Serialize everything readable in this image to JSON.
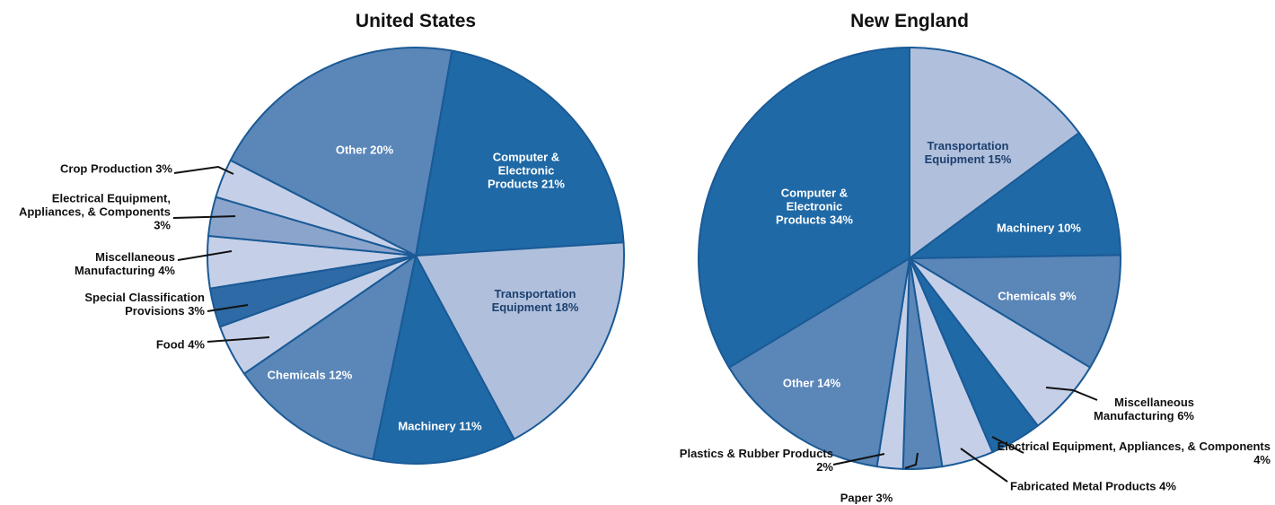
{
  "chart_data": [
    {
      "type": "pie",
      "title": "United States",
      "categories": [
        "Computer & Electronic Products",
        "Transportation Equipment",
        "Machinery",
        "Chemicals",
        "Food",
        "Special Classification Provisions",
        "Miscellaneous Manufacturing",
        "Electrical Equipment, Appliances, & Components",
        "Crop Production",
        "Other"
      ],
      "values": [
        21,
        18,
        11,
        12,
        4,
        3,
        4,
        3,
        3,
        20
      ],
      "value_labels": [
        "21%",
        "18%",
        "11%",
        "12%",
        "4%",
        "3%",
        "4%",
        "3%",
        "3%",
        "20%"
      ],
      "colors": [
        "#1f69a6",
        "#b0c0dc",
        "#1f69a6",
        "#5a86b8",
        "#c5d0e8",
        "#2e6aa5",
        "#c5d0e8",
        "#8ba4cc",
        "#c5d0e8",
        "#5a86b8"
      ]
    },
    {
      "type": "pie",
      "title": "New England",
      "categories": [
        "Transportation Equipment",
        "Machinery",
        "Chemicals",
        "Miscellaneous Manufacturing",
        "Electrical Equipment, Appliances, & Components",
        "Fabricated Metal Products",
        "Paper",
        "Plastics & Rubber Products",
        "Other",
        "Computer & Electronic Products"
      ],
      "values": [
        15,
        10,
        9,
        6,
        4,
        4,
        3,
        2,
        14,
        34
      ],
      "value_labels": [
        "15%",
        "10%",
        "9%",
        "6%",
        "4%",
        "4%",
        "3%",
        "2%",
        "14%",
        "34%"
      ],
      "colors": [
        "#b0c0dc",
        "#1f69a6",
        "#5a86b8",
        "#c5d0e8",
        "#1f69a6",
        "#c5d0e8",
        "#5a86b8",
        "#c5d0e8",
        "#5a86b8",
        "#1f69a6"
      ]
    }
  ]
}
